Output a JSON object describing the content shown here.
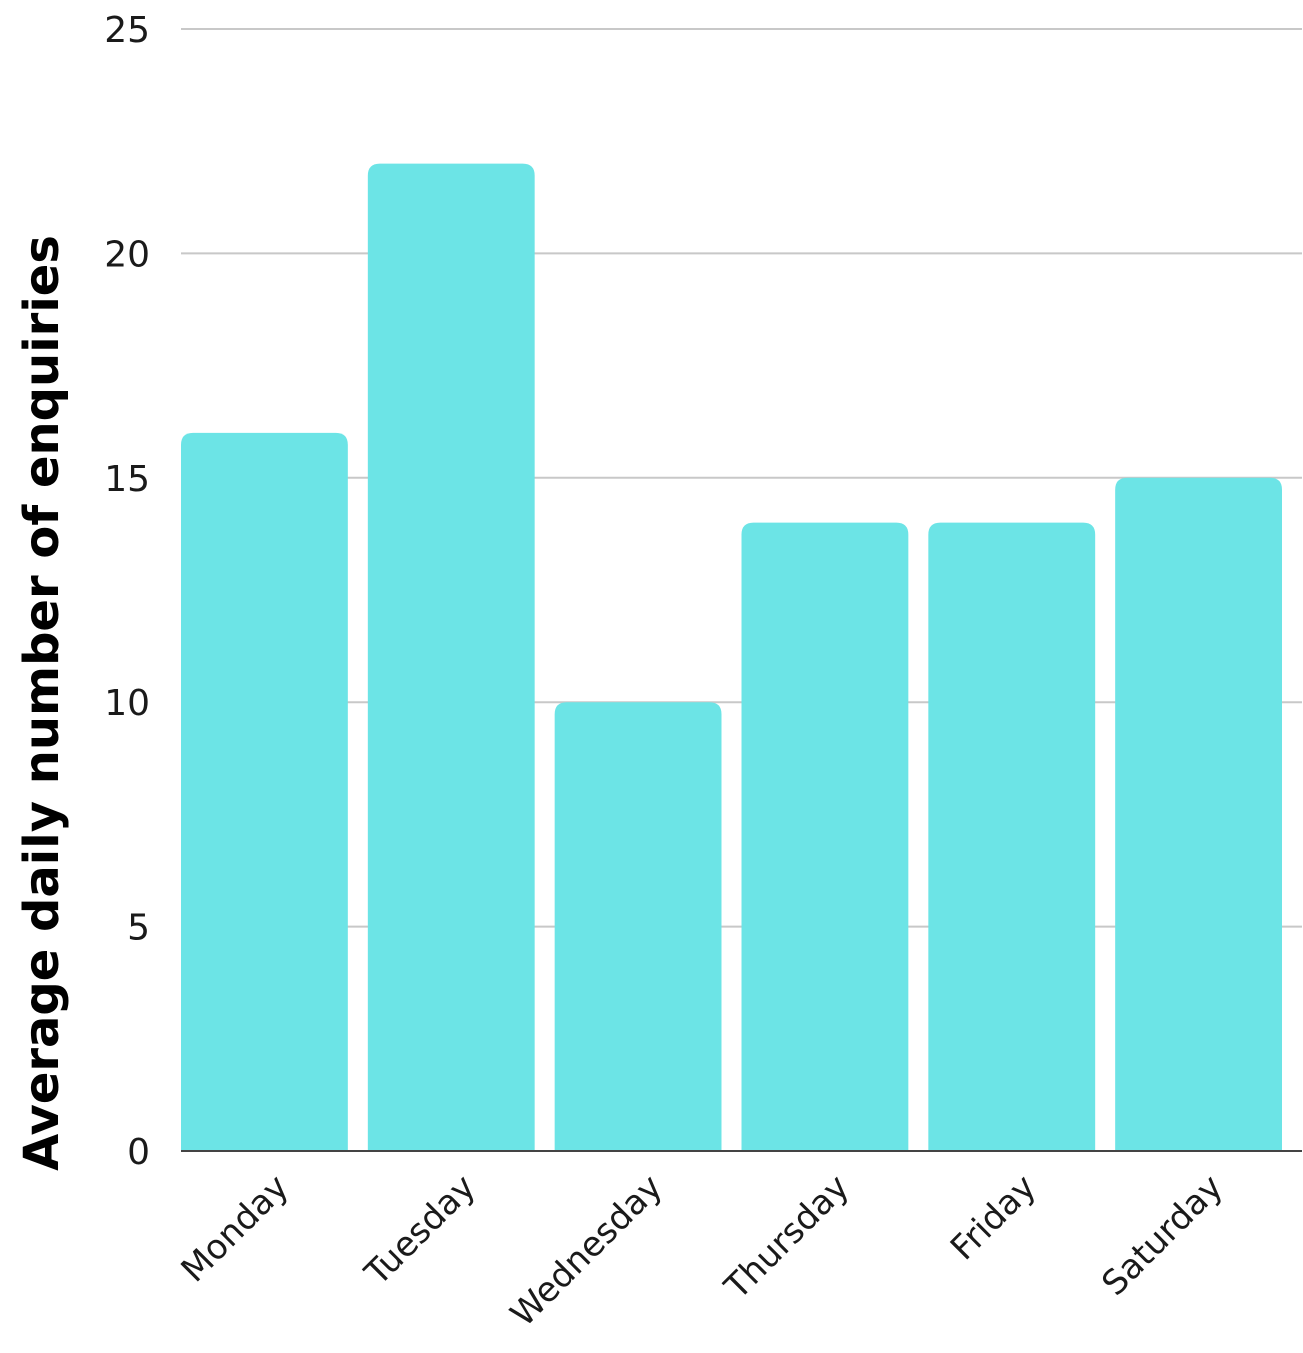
{
  "chart_data": {
    "type": "bar",
    "title": "",
    "xlabel": "",
    "ylabel": "Average daily number of enquiries",
    "categories": [
      "Monday",
      "Tuesday",
      "Wednesday",
      "Thursday",
      "Friday",
      "Saturday"
    ],
    "values": [
      16,
      22,
      10,
      14,
      14,
      15
    ],
    "ylim": [
      0,
      25
    ],
    "yticks": [
      0,
      5,
      10,
      15,
      20,
      25
    ],
    "grid": true,
    "legend": "none",
    "bar_color": "#6ce4e6",
    "grid_color": "#c8c8c8",
    "baseline_color": "#444444"
  }
}
